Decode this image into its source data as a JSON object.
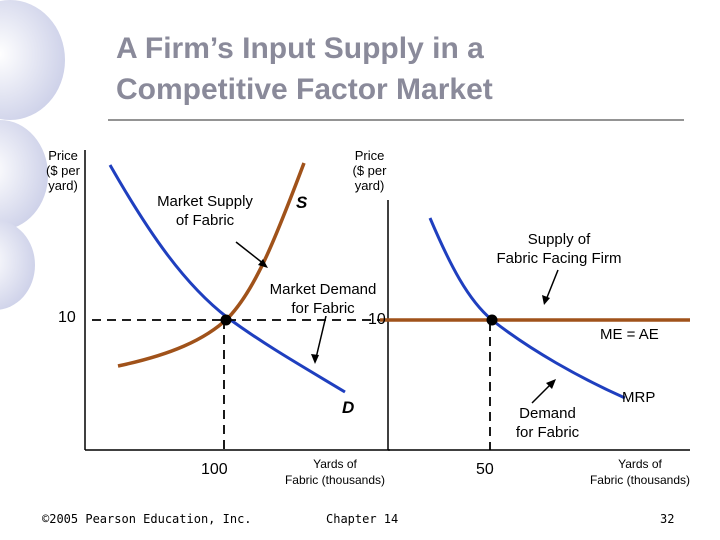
{
  "slide": {
    "title_line1": "A Firm’s Input Supply in a",
    "title_line2": "Competitive Factor Market",
    "page_number": "32",
    "chapter": "Chapter 14",
    "copyright": "©2005 Pearson Education, Inc."
  },
  "market_panel": {
    "y_axis_label_1": "Price",
    "y_axis_label_2": "($ per",
    "y_axis_label_3": "yard)",
    "supply_label_1": "Market Supply",
    "supply_label_2": "of Fabric",
    "supply_curve_label": "S",
    "demand_label_1": "Market Demand",
    "demand_label_2": "for Fabric",
    "demand_curve_label": "D",
    "price_value": "10",
    "quantity_value": "100",
    "x_axis_label_1": "Yards of",
    "x_axis_label_2": "Fabric (thousands)"
  },
  "firm_panel": {
    "y_axis_label_1": "Price",
    "y_axis_label_2": "($ per",
    "y_axis_label_3": "yard)",
    "supply_label_1": "Supply of",
    "supply_label_2": "Fabric Facing Firm",
    "price_value": "10",
    "me_ae_label": "ME = AE",
    "mrp_label": "MRP",
    "demand_label_1": "Demand",
    "demand_label_2": "for Fabric",
    "quantity_value": "50",
    "x_axis_label_1": "Yards of",
    "x_axis_label_2": "Fabric (thousands)"
  },
  "colors": {
    "title": "#8a8a9a",
    "demand_curve": "#1f3fbf",
    "supply_curve": "#a0521a"
  }
}
